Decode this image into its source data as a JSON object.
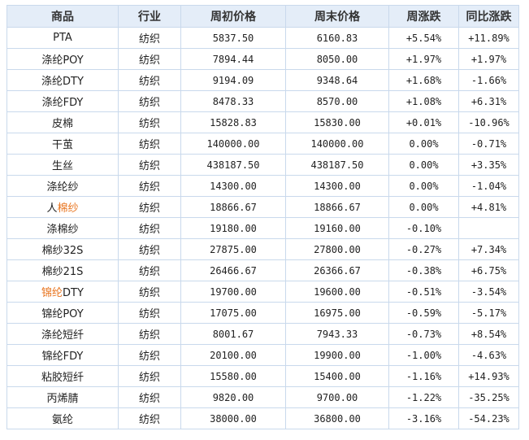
{
  "headers": [
    "商品",
    "行业",
    "周初价格",
    "周末价格",
    "周涨跌",
    "同比涨跌"
  ],
  "colors": {
    "highlight": "#e8741e",
    "up": "#e02020",
    "down": "#1a8a1a",
    "header_bg": "#e4edf8",
    "border": "#c9d9ec"
  },
  "rows": [
    {
      "name": "PTA",
      "highlight": false,
      "industry": "纺织",
      "open": "5837.50",
      "close": "6160.83",
      "week": "+5.54%",
      "yoy": "+11.89%"
    },
    {
      "name": "涤纶POY",
      "highlight": true,
      "industry": "纺织",
      "open": "7894.44",
      "close": "8050.00",
      "week": "+1.97%",
      "yoy": "+1.97%"
    },
    {
      "name": "涤纶DTY",
      "highlight": false,
      "industry": "纺织",
      "open": "9194.09",
      "close": "9348.64",
      "week": "+1.68%",
      "yoy": "-1.66%"
    },
    {
      "name": "涤纶FDY",
      "highlight": true,
      "industry": "纺织",
      "open": "8478.33",
      "close": "8570.00",
      "week": "+1.08%",
      "yoy": "+6.31%"
    },
    {
      "name": "皮棉",
      "highlight": true,
      "industry": "纺织",
      "open": "15828.83",
      "close": "15830.00",
      "week": "+0.01%",
      "yoy": "-10.96%"
    },
    {
      "name": "干茧",
      "highlight": true,
      "industry": "纺织",
      "open": "140000.00",
      "close": "140000.00",
      "week": "0.00%",
      "yoy": "-0.71%"
    },
    {
      "name": "生丝",
      "highlight": true,
      "industry": "纺织",
      "open": "438187.50",
      "close": "438187.50",
      "week": "0.00%",
      "yoy": "+3.35%"
    },
    {
      "name": "涤纶纱",
      "highlight": true,
      "industry": "纺织",
      "open": "14300.00",
      "close": "14300.00",
      "week": "0.00%",
      "yoy": "-1.04%"
    },
    {
      "name": "人棉纱",
      "highlight": "partial",
      "prefix": "人",
      "suffix": "棉纱",
      "industry": "纺织",
      "open": "18866.67",
      "close": "18866.67",
      "week": "0.00%",
      "yoy": "+4.81%"
    },
    {
      "name": "涤棉纱",
      "highlight": false,
      "industry": "纺织",
      "open": "19180.00",
      "close": "19160.00",
      "week": "-0.10%",
      "yoy": ""
    },
    {
      "name": "棉纱32S",
      "highlight": false,
      "industry": "纺织",
      "open": "27875.00",
      "close": "27800.00",
      "week": "-0.27%",
      "yoy": "+7.34%"
    },
    {
      "name": "棉纱21S",
      "highlight": false,
      "industry": "纺织",
      "open": "26466.67",
      "close": "26366.67",
      "week": "-0.38%",
      "yoy": "+6.75%"
    },
    {
      "name": "锦纶DTY",
      "highlight": "partial",
      "prefix": "锦纶",
      "suffix": "DTY",
      "industry": "纺织",
      "open": "19700.00",
      "close": "19600.00",
      "week": "-0.51%",
      "yoy": "-3.54%"
    },
    {
      "name": "锦纶POY",
      "highlight": true,
      "industry": "纺织",
      "open": "17075.00",
      "close": "16975.00",
      "week": "-0.59%",
      "yoy": "-5.17%"
    },
    {
      "name": "涤纶短纤",
      "highlight": true,
      "industry": "纺织",
      "open": "8001.67",
      "close": "7943.33",
      "week": "-0.73%",
      "yoy": "+8.54%"
    },
    {
      "name": "锦纶FDY",
      "highlight": true,
      "industry": "纺织",
      "open": "20100.00",
      "close": "19900.00",
      "week": "-1.00%",
      "yoy": "-4.63%"
    },
    {
      "name": "粘胶短纤",
      "highlight": true,
      "industry": "纺织",
      "open": "15580.00",
      "close": "15400.00",
      "week": "-1.16%",
      "yoy": "+14.93%"
    },
    {
      "name": "丙烯腈",
      "highlight": false,
      "industry": "纺织",
      "open": "9820.00",
      "close": "9700.00",
      "week": "-1.22%",
      "yoy": "-35.25%"
    },
    {
      "name": "氨纶",
      "highlight": false,
      "industry": "纺织",
      "open": "38000.00",
      "close": "36800.00",
      "week": "-3.16%",
      "yoy": "-54.23%"
    }
  ]
}
